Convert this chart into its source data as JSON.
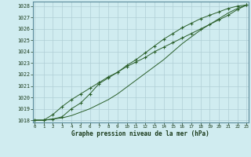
{
  "title": "Graphe pression niveau de la mer (hPa)",
  "bg_color": "#d0ecf0",
  "grid_color": "#b0ced5",
  "line_color": "#2a5f2a",
  "xlim_min": 0,
  "xlim_max": 23,
  "ylim_min": 1017.8,
  "ylim_max": 1028.4,
  "yticks": [
    1018,
    1019,
    1020,
    1021,
    1022,
    1023,
    1024,
    1025,
    1026,
    1027,
    1028
  ],
  "xticks": [
    0,
    1,
    2,
    3,
    4,
    5,
    6,
    7,
    8,
    9,
    10,
    11,
    12,
    13,
    14,
    15,
    16,
    17,
    18,
    19,
    20,
    21,
    22,
    23
  ],
  "series1_y": [
    1018.0,
    1018.0,
    1018.1,
    1018.3,
    1019.0,
    1019.5,
    1020.3,
    1021.2,
    1021.7,
    1022.2,
    1022.8,
    1023.3,
    1023.9,
    1024.5,
    1025.1,
    1025.6,
    1026.1,
    1026.5,
    1026.9,
    1027.2,
    1027.5,
    1027.8,
    1028.0,
    1028.1
  ],
  "series2_y": [
    1018.0,
    1018.0,
    1018.5,
    1019.2,
    1019.8,
    1020.3,
    1020.8,
    1021.3,
    1021.8,
    1022.2,
    1022.7,
    1023.1,
    1023.5,
    1024.0,
    1024.4,
    1024.8,
    1025.2,
    1025.6,
    1026.0,
    1026.4,
    1026.8,
    1027.2,
    1027.7,
    1028.1
  ],
  "series3_y": [
    1018.0,
    1018.0,
    1018.1,
    1018.2,
    1018.4,
    1018.7,
    1019.0,
    1019.4,
    1019.8,
    1020.3,
    1020.9,
    1021.5,
    1022.1,
    1022.7,
    1023.3,
    1024.0,
    1024.7,
    1025.3,
    1025.9,
    1026.4,
    1026.9,
    1027.4,
    1027.8,
    1028.1
  ],
  "figwidth": 3.2,
  "figheight": 2.0,
  "dpi": 100
}
